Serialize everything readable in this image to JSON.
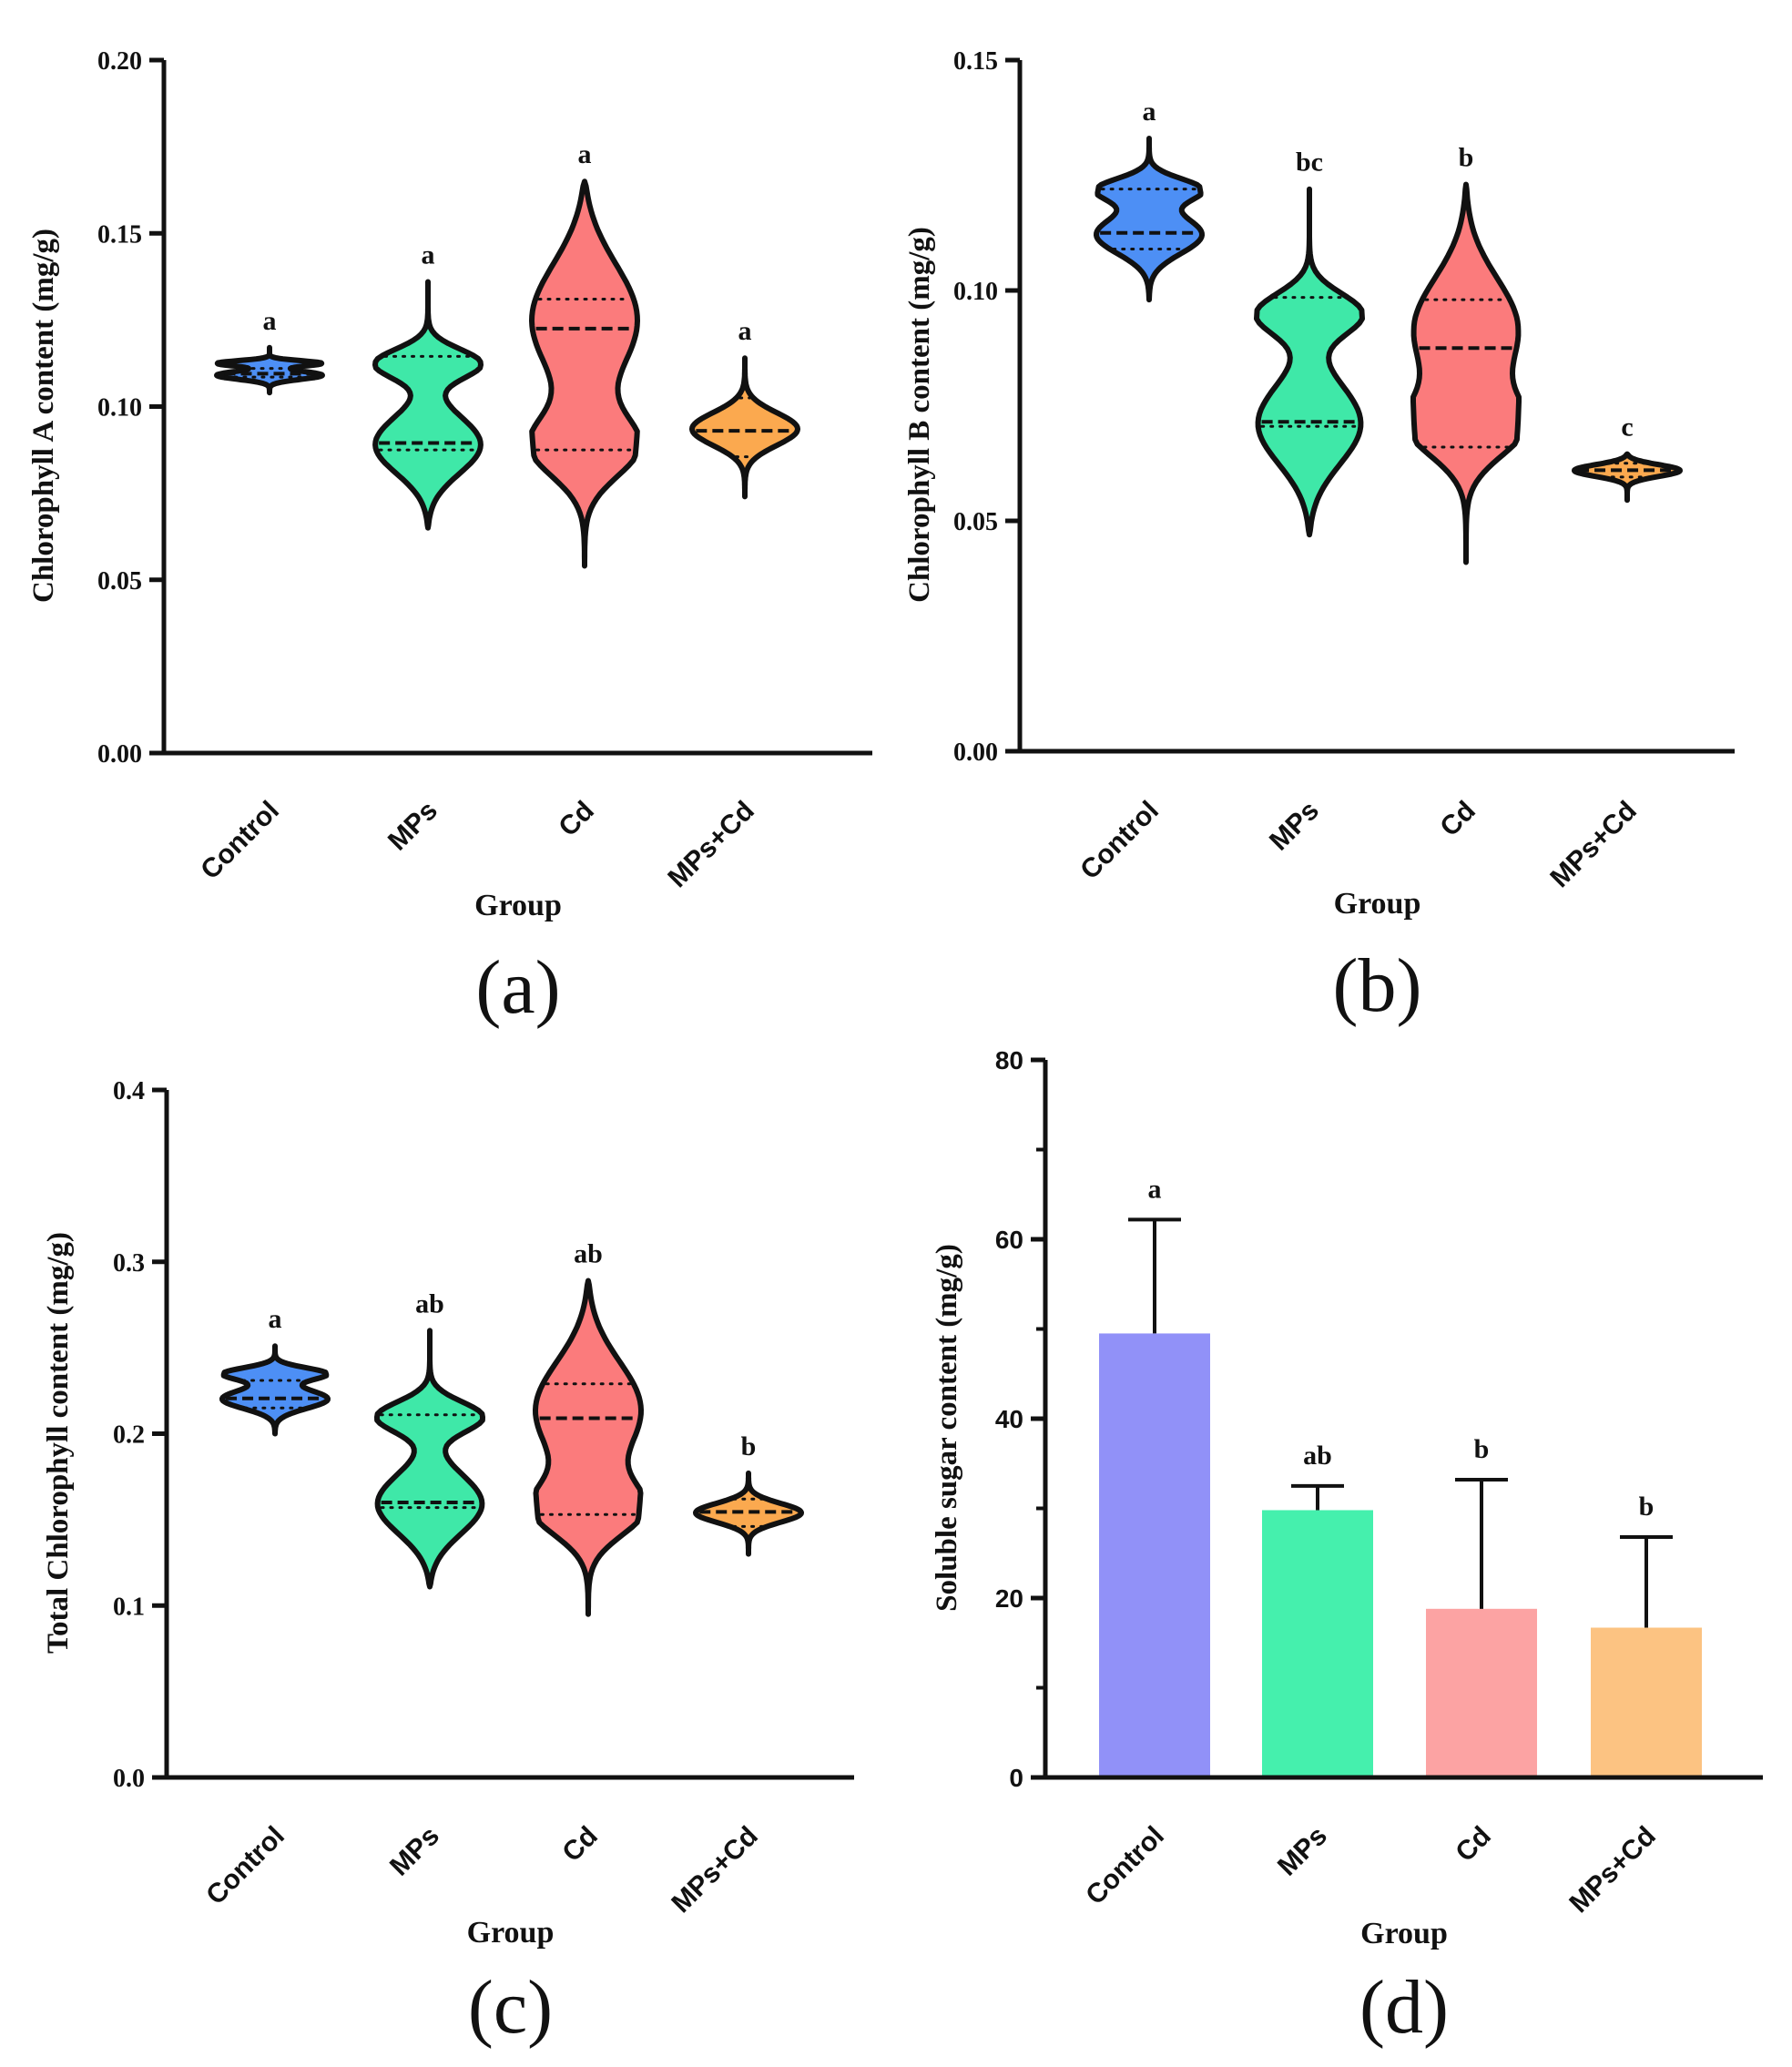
{
  "figure": {
    "panel_labels": [
      "(a)",
      "(b)",
      "(c)",
      "(d)"
    ]
  },
  "chart_data": [
    {
      "type": "violin",
      "panel": "(a)",
      "title": "",
      "xlabel": "Group",
      "ylabel": "Chlorophyll A content (mg/g)",
      "categories": [
        "Control",
        "MPs",
        "Cd",
        "MPs+Cd"
      ],
      "colors": [
        "#4d8ff5",
        "#3fe8a8",
        "#fb7b7c",
        "#fba94f"
      ],
      "ylim": [
        0,
        0.2
      ],
      "yticks": [
        0.0,
        0.05,
        0.1,
        0.15,
        0.2
      ],
      "ytick_labels": [
        "0.00",
        "0.05",
        "0.10",
        "0.15",
        "0.20"
      ],
      "letters": [
        "a",
        "a",
        "a",
        "a"
      ],
      "violins": [
        {
          "min": 0.104,
          "max": 0.117,
          "q1": 0.1085,
          "median": 0.1095,
          "q3": 0.111,
          "bulges": [
            [
              0.109,
              0.09
            ],
            [
              0.1125,
              0.06
            ]
          ]
        },
        {
          "min": 0.065,
          "max": 0.136,
          "q1": 0.0875,
          "median": 0.0895,
          "q3": 0.1145,
          "bulges": [
            [
              0.0885,
              0.12
            ],
            [
              0.1125,
              0.06
            ]
          ]
        },
        {
          "min": 0.054,
          "max": 0.165,
          "q1": 0.0875,
          "median": 0.1225,
          "q3": 0.131,
          "bulges": [
            [
              0.126,
              0.15
            ],
            [
              0.088,
              0.08
            ]
          ]
        },
        {
          "min": 0.074,
          "max": 0.114,
          "q1": 0.0855,
          "median": 0.093,
          "q3": 0.1025,
          "bulges": [
            [
              0.0935,
              0.12
            ]
          ]
        }
      ]
    },
    {
      "type": "violin",
      "panel": "(b)",
      "title": "",
      "xlabel": "Group",
      "ylabel": "Chlorophyll B content (mg/g)",
      "categories": [
        "Control",
        "MPs",
        "Cd",
        "MPs+Cd"
      ],
      "colors": [
        "#4d8ff5",
        "#3fe8a8",
        "#fb7b7c",
        "#fba94f"
      ],
      "ylim": [
        0,
        0.15
      ],
      "yticks": [
        0.0,
        0.05,
        0.1,
        0.15
      ],
      "ytick_labels": [
        "0.00",
        "0.05",
        "0.10",
        "0.15"
      ],
      "letters": [
        "a",
        "bc",
        "b",
        "c"
      ],
      "violins": [
        {
          "min": 0.098,
          "max": 0.133,
          "q1": 0.109,
          "median": 0.1125,
          "q3": 0.122,
          "bulges": [
            [
              0.112,
              0.12
            ],
            [
              0.122,
              0.07
            ]
          ]
        },
        {
          "min": 0.047,
          "max": 0.122,
          "q1": 0.0705,
          "median": 0.0715,
          "q3": 0.0985,
          "bulges": [
            [
              0.0705,
              0.12
            ],
            [
              0.095,
              0.06
            ]
          ]
        },
        {
          "min": 0.041,
          "max": 0.123,
          "q1": 0.066,
          "median": 0.0875,
          "q3": 0.098,
          "bulges": [
            [
              0.092,
              0.14
            ],
            [
              0.07,
              0.08
            ]
          ]
        },
        {
          "min": 0.0545,
          "max": 0.0645,
          "q1": 0.0595,
          "median": 0.061,
          "q3": 0.0625,
          "bulges": [
            [
              0.061,
              0.13
            ]
          ]
        }
      ]
    },
    {
      "type": "violin",
      "panel": "(c)",
      "title": "",
      "xlabel": "Group",
      "ylabel": "Total Chlorophyll content (mg/g)",
      "categories": [
        "Control",
        "MPs",
        "Cd",
        "MPs+Cd"
      ],
      "colors": [
        "#4d8ff5",
        "#3fe8a8",
        "#fb7b7c",
        "#fba94f"
      ],
      "ylim": [
        0,
        0.4
      ],
      "yticks": [
        0.0,
        0.1,
        0.2,
        0.3,
        0.4
      ],
      "ytick_labels": [
        "0.0",
        "0.1",
        "0.2",
        "0.3",
        "0.4"
      ],
      "letters": [
        "a",
        "ab",
        "ab",
        "b"
      ],
      "violins": [
        {
          "min": 0.2,
          "max": 0.251,
          "q1": 0.215,
          "median": 0.2205,
          "q3": 0.231,
          "bulges": [
            [
              0.22,
              0.11
            ],
            [
              0.235,
              0.07
            ]
          ]
        },
        {
          "min": 0.111,
          "max": 0.26,
          "q1": 0.157,
          "median": 0.16,
          "q3": 0.211,
          "bulges": [
            [
              0.158,
              0.12
            ],
            [
              0.21,
              0.06
            ]
          ]
        },
        {
          "min": 0.095,
          "max": 0.289,
          "q1": 0.153,
          "median": 0.209,
          "q3": 0.229,
          "bulges": [
            [
              0.215,
              0.15
            ],
            [
              0.155,
              0.08
            ]
          ]
        },
        {
          "min": 0.13,
          "max": 0.177,
          "q1": 0.146,
          "median": 0.1545,
          "q3": 0.162,
          "bulges": [
            [
              0.154,
              0.12
            ]
          ]
        }
      ]
    },
    {
      "type": "bar",
      "panel": "(d)",
      "title": "",
      "xlabel": "Group",
      "ylabel": "Soluble sugar content (mg/g)",
      "categories": [
        "Control",
        "MPs",
        "Cd",
        "MPs+Cd"
      ],
      "values": [
        49.5,
        29.8,
        18.8,
        16.7
      ],
      "errors": [
        12.7,
        2.7,
        14.4,
        10.1
      ],
      "colors": [
        "#9191f8",
        "#45f0ad",
        "#fca3a3",
        "#fcc382"
      ],
      "ylim": [
        0,
        80
      ],
      "yticks": [
        0,
        20,
        40,
        60,
        80
      ],
      "ytick_labels": [
        "0",
        "20",
        "40",
        "60",
        "80"
      ],
      "minor_ticks": [
        10,
        30,
        50,
        70
      ],
      "letters": [
        "a",
        "ab",
        "b",
        "b"
      ]
    }
  ]
}
